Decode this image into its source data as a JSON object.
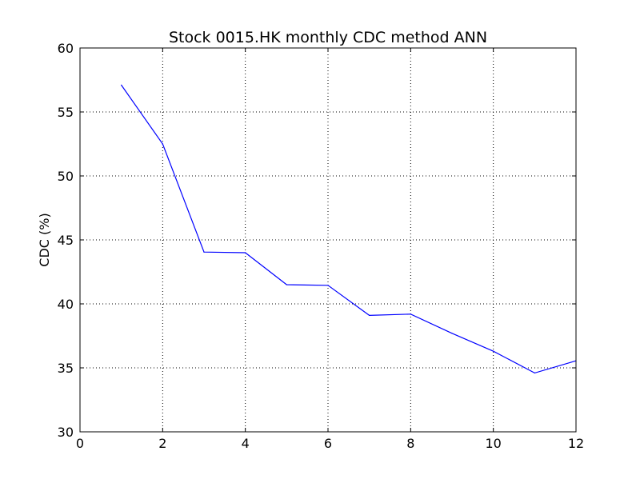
{
  "chart_data": {
    "type": "line",
    "title": "Stock 0015.HK monthly CDC method ANN",
    "xlabel": "",
    "ylabel": "CDC (%)",
    "xlim": [
      0,
      12
    ],
    "ylim": [
      30,
      60
    ],
    "xticks": [
      0,
      2,
      4,
      6,
      8,
      10,
      12
    ],
    "yticks": [
      30,
      35,
      40,
      45,
      50,
      55,
      60
    ],
    "grid": true,
    "legend": "none",
    "series": [
      {
        "color": "#0000ff",
        "x": [
          1,
          2,
          3,
          4,
          5,
          6,
          7,
          8,
          9,
          10,
          11,
          12
        ],
        "y": [
          57.1,
          52.5,
          44.05,
          44.0,
          41.5,
          41.45,
          39.1,
          39.2,
          37.7,
          36.3,
          34.6,
          35.55
        ]
      }
    ]
  }
}
